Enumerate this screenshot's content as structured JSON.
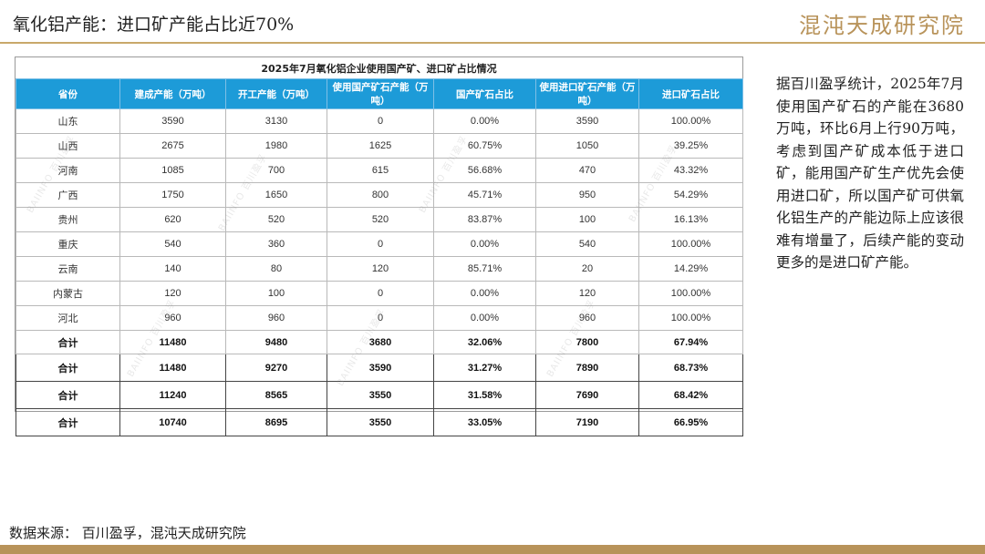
{
  "header": {
    "title": "氧化铝产能：进口矿产能占比近70%",
    "logo_text": "混沌天成研究院"
  },
  "table": {
    "caption": "2025年7月氧化铝企业使用国产矿、进口矿占比情况",
    "columns": [
      "省份",
      "建成产能（万吨）",
      "开工产能（万吨）",
      "使用国产矿石产能（万吨）",
      "国产矿石占比",
      "使用进口矿石产能（万吨）",
      "进口矿石占比"
    ],
    "rows": [
      [
        "山东",
        "3590",
        "3130",
        "0",
        "0.00%",
        "3590",
        "100.00%"
      ],
      [
        "山西",
        "2675",
        "1980",
        "1625",
        "60.75%",
        "1050",
        "39.25%"
      ],
      [
        "河南",
        "1085",
        "700",
        "615",
        "56.68%",
        "470",
        "43.32%"
      ],
      [
        "广西",
        "1750",
        "1650",
        "800",
        "45.71%",
        "950",
        "54.29%"
      ],
      [
        "贵州",
        "620",
        "520",
        "520",
        "83.87%",
        "100",
        "16.13%"
      ],
      [
        "重庆",
        "540",
        "360",
        "0",
        "0.00%",
        "540",
        "100.00%"
      ],
      [
        "云南",
        "140",
        "80",
        "120",
        "85.71%",
        "20",
        "14.29%"
      ],
      [
        "内蒙古",
        "120",
        "100",
        "0",
        "0.00%",
        "120",
        "100.00%"
      ],
      [
        "河北",
        "960",
        "960",
        "0",
        "0.00%",
        "960",
        "100.00%"
      ]
    ],
    "totals": [
      [
        "合计",
        "11480",
        "9480",
        "3680",
        "32.06%",
        "7800",
        "67.94%"
      ],
      [
        "合计",
        "11480",
        "9270",
        "3590",
        "31.27%",
        "7890",
        "68.73%"
      ],
      [
        "合计",
        "11240",
        "8565",
        "3550",
        "31.58%",
        "7690",
        "68.42%"
      ],
      [
        "合计",
        "10740",
        "8695",
        "3550",
        "33.05%",
        "7190",
        "66.95%"
      ]
    ],
    "watermark_text": "BAIINFO 百川盈孚"
  },
  "side_text": "据百川盈孚统计，2025年7月使用国产矿石的产能在3680万吨，环比6月上行90万吨，考虑到国产矿成本低于进口矿，能用国产矿生产优先会使用进口矿，所以国产矿可供氧化铝生产的产能边际上应该很难有增量了，后续产能的变动更多的是进口矿产能。",
  "source": "数据来源：  百川盈孚，混沌天成研究院",
  "colors": {
    "header_blue": "#1d9bd8",
    "accent_gold": "#b8935a"
  }
}
